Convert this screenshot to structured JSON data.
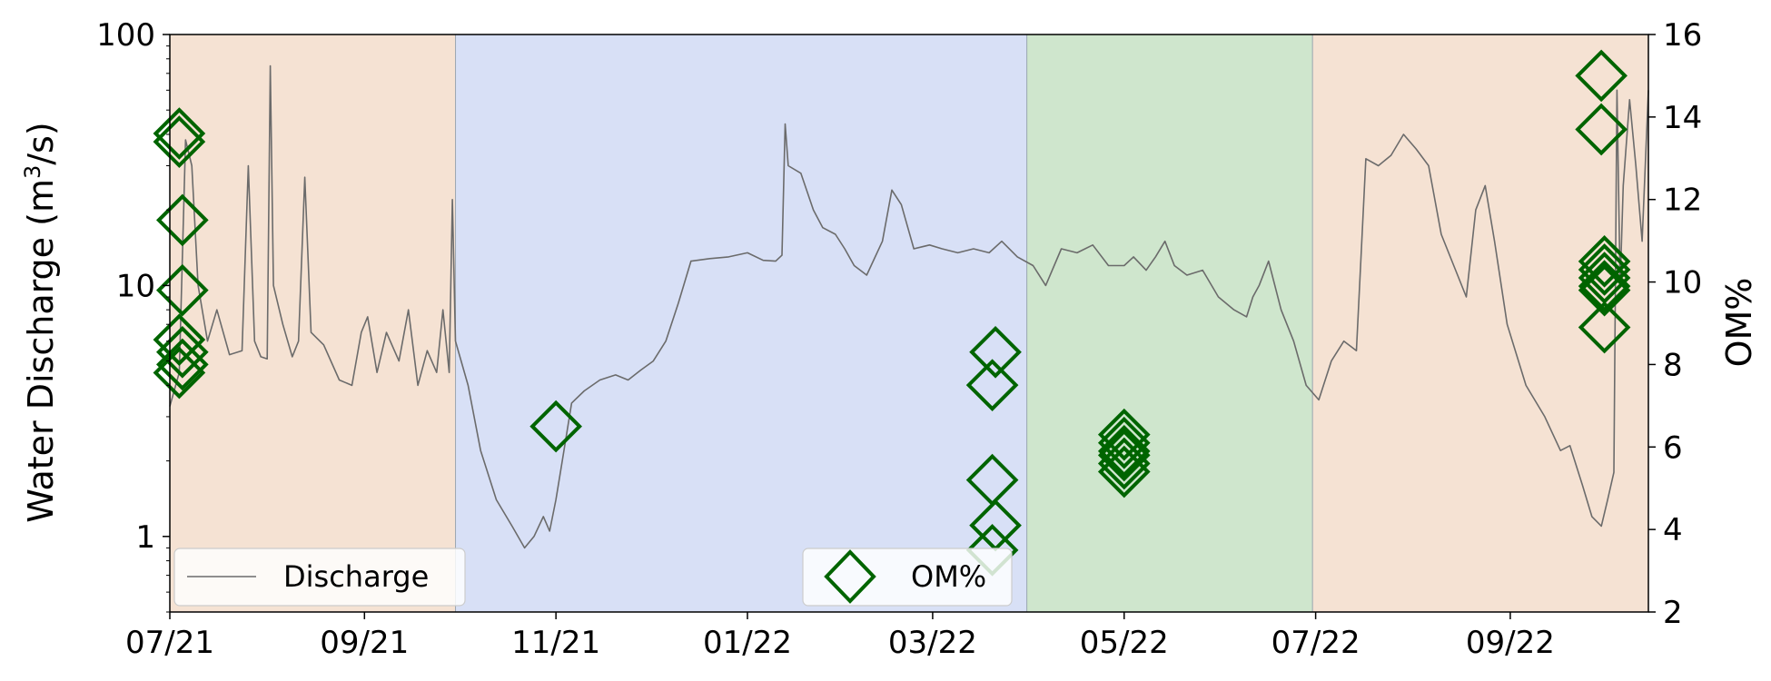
{
  "chart_data": {
    "type": "line",
    "xlabel": "",
    "ylabel": "Water Discharge (m",
    "ylabel_sup": "3",
    "ylabel_tail": "/s)",
    "y2label": "OM%",
    "x_range": [
      "2021-07-01",
      "2022-10-15"
    ],
    "x_ticks": [
      {
        "date": "2021-07-01",
        "label": "07/21"
      },
      {
        "date": "2021-09-01",
        "label": "09/21"
      },
      {
        "date": "2021-11-01",
        "label": "11/21"
      },
      {
        "date": "2022-01-01",
        "label": "01/22"
      },
      {
        "date": "2022-03-01",
        "label": "03/22"
      },
      {
        "date": "2022-05-01",
        "label": "05/22"
      },
      {
        "date": "2022-07-01",
        "label": "07/22"
      },
      {
        "date": "2022-09-01",
        "label": "09/22"
      }
    ],
    "y_scale": "log",
    "ylim": [
      0.5,
      100
    ],
    "y_ticks": [
      {
        "value": 1,
        "label": "1"
      },
      {
        "value": 10,
        "label": "10"
      },
      {
        "value": 100,
        "label": "100"
      }
    ],
    "y2lim": [
      2,
      16
    ],
    "y2_ticks": [
      {
        "value": 2,
        "label": "2"
      },
      {
        "value": 4,
        "label": "4"
      },
      {
        "value": 6,
        "label": "6"
      },
      {
        "value": 8,
        "label": "8"
      },
      {
        "value": 10,
        "label": "10"
      },
      {
        "value": 12,
        "label": "12"
      },
      {
        "value": 14,
        "label": "14"
      },
      {
        "value": 16,
        "label": "16"
      }
    ],
    "season_bands": [
      {
        "start": "2021-07-01",
        "end": "2021-09-30",
        "color": "#f5e2d3"
      },
      {
        "start": "2021-09-30",
        "end": "2022-03-31",
        "color": "#d8e0f6"
      },
      {
        "start": "2022-03-31",
        "end": "2022-06-30",
        "color": "#cfe6cd"
      },
      {
        "start": "2022-06-30",
        "end": "2022-10-15",
        "color": "#f5e2d3"
      }
    ],
    "series": [
      {
        "name": "Discharge",
        "axis": "left",
        "color": "#6b6b6b",
        "points": [
          [
            "2021-07-01",
            3.3
          ],
          [
            "2021-07-04",
            4.5
          ],
          [
            "2021-07-06",
            38
          ],
          [
            "2021-07-08",
            30
          ],
          [
            "2021-07-10",
            10
          ],
          [
            "2021-07-13",
            6
          ],
          [
            "2021-07-16",
            8
          ],
          [
            "2021-07-20",
            5.3
          ],
          [
            "2021-07-24",
            5.5
          ],
          [
            "2021-07-26",
            30
          ],
          [
            "2021-07-28",
            6
          ],
          [
            "2021-07-30",
            5.2
          ],
          [
            "2021-08-01",
            5.1
          ],
          [
            "2021-08-02",
            75
          ],
          [
            "2021-08-03",
            10
          ],
          [
            "2021-08-06",
            7
          ],
          [
            "2021-08-09",
            5.2
          ],
          [
            "2021-08-11",
            6
          ],
          [
            "2021-08-13",
            27
          ],
          [
            "2021-08-15",
            6.5
          ],
          [
            "2021-08-19",
            5.8
          ],
          [
            "2021-08-24",
            4.2
          ],
          [
            "2021-08-28",
            4
          ],
          [
            "2021-08-31",
            6.5
          ],
          [
            "2021-09-02",
            7.5
          ],
          [
            "2021-09-05",
            4.5
          ],
          [
            "2021-09-08",
            6.5
          ],
          [
            "2021-09-12",
            5
          ],
          [
            "2021-09-15",
            8
          ],
          [
            "2021-09-18",
            4
          ],
          [
            "2021-09-21",
            5.5
          ],
          [
            "2021-09-24",
            4.5
          ],
          [
            "2021-09-26",
            8
          ],
          [
            "2021-09-28",
            4.5
          ],
          [
            "2021-09-29",
            22
          ],
          [
            "2021-09-30",
            6
          ],
          [
            "2021-10-04",
            4
          ],
          [
            "2021-10-08",
            2.2
          ],
          [
            "2021-10-13",
            1.4
          ],
          [
            "2021-10-18",
            1.1
          ],
          [
            "2021-10-22",
            0.9
          ],
          [
            "2021-10-25",
            1
          ],
          [
            "2021-10-28",
            1.2
          ],
          [
            "2021-10-30",
            1.05
          ],
          [
            "2021-11-01",
            1.4
          ],
          [
            "2021-11-03",
            2
          ],
          [
            "2021-11-06",
            3.4
          ],
          [
            "2021-11-10",
            3.8
          ],
          [
            "2021-11-15",
            4.2
          ],
          [
            "2021-11-20",
            4.4
          ],
          [
            "2021-11-24",
            4.2
          ],
          [
            "2021-11-28",
            4.6
          ],
          [
            "2021-12-02",
            5
          ],
          [
            "2021-12-06",
            6
          ],
          [
            "2021-12-10",
            8.5
          ],
          [
            "2021-12-14",
            12.5
          ],
          [
            "2021-12-20",
            12.8
          ],
          [
            "2021-12-26",
            13
          ],
          [
            "2022-01-01",
            13.5
          ],
          [
            "2022-01-06",
            12.6
          ],
          [
            "2022-01-10",
            12.5
          ],
          [
            "2022-01-12",
            13.2
          ],
          [
            "2022-01-13",
            44
          ],
          [
            "2022-01-14",
            30
          ],
          [
            "2022-01-18",
            28
          ],
          [
            "2022-01-22",
            20
          ],
          [
            "2022-01-25",
            17
          ],
          [
            "2022-01-29",
            16
          ],
          [
            "2022-02-01",
            14
          ],
          [
            "2022-02-04",
            12
          ],
          [
            "2022-02-08",
            11
          ],
          [
            "2022-02-13",
            15
          ],
          [
            "2022-02-16",
            24
          ],
          [
            "2022-02-19",
            21
          ],
          [
            "2022-02-23",
            14
          ],
          [
            "2022-02-28",
            14.5
          ],
          [
            "2022-03-04",
            14
          ],
          [
            "2022-03-09",
            13.5
          ],
          [
            "2022-03-14",
            14
          ],
          [
            "2022-03-19",
            13.5
          ],
          [
            "2022-03-23",
            15
          ],
          [
            "2022-03-28",
            13
          ],
          [
            "2022-04-02",
            12
          ],
          [
            "2022-04-06",
            10
          ],
          [
            "2022-04-11",
            14
          ],
          [
            "2022-04-16",
            13.5
          ],
          [
            "2022-04-21",
            14.5
          ],
          [
            "2022-04-26",
            12
          ],
          [
            "2022-05-01",
            12
          ],
          [
            "2022-05-04",
            13
          ],
          [
            "2022-05-08",
            11.5
          ],
          [
            "2022-05-11",
            13
          ],
          [
            "2022-05-14",
            15
          ],
          [
            "2022-05-17",
            12
          ],
          [
            "2022-05-21",
            11
          ],
          [
            "2022-05-26",
            11.5
          ],
          [
            "2022-05-31",
            9
          ],
          [
            "2022-06-05",
            8
          ],
          [
            "2022-06-09",
            7.5
          ],
          [
            "2022-06-11",
            9
          ],
          [
            "2022-06-13",
            10
          ],
          [
            "2022-06-16",
            12.5
          ],
          [
            "2022-06-20",
            8
          ],
          [
            "2022-06-24",
            6
          ],
          [
            "2022-06-28",
            4
          ],
          [
            "2022-07-02",
            3.5
          ],
          [
            "2022-07-06",
            5
          ],
          [
            "2022-07-10",
            6
          ],
          [
            "2022-07-14",
            5.5
          ],
          [
            "2022-07-17",
            32
          ],
          [
            "2022-07-21",
            30
          ],
          [
            "2022-07-25",
            33
          ],
          [
            "2022-07-29",
            40
          ],
          [
            "2022-08-02",
            35
          ],
          [
            "2022-08-06",
            30
          ],
          [
            "2022-08-10",
            16
          ],
          [
            "2022-08-14",
            12
          ],
          [
            "2022-08-18",
            9
          ],
          [
            "2022-08-21",
            20
          ],
          [
            "2022-08-24",
            25
          ],
          [
            "2022-08-27",
            15
          ],
          [
            "2022-08-31",
            7
          ],
          [
            "2022-09-06",
            4
          ],
          [
            "2022-09-12",
            3
          ],
          [
            "2022-09-17",
            2.2
          ],
          [
            "2022-09-20",
            2.3
          ],
          [
            "2022-09-24",
            1.6
          ],
          [
            "2022-09-27",
            1.2
          ],
          [
            "2022-09-30",
            1.1
          ],
          [
            "2022-10-02",
            1.4
          ],
          [
            "2022-10-04",
            1.8
          ],
          [
            "2022-10-05",
            60
          ],
          [
            "2022-10-06",
            10
          ],
          [
            "2022-10-07",
            25
          ],
          [
            "2022-10-09",
            55
          ],
          [
            "2022-10-11",
            30
          ],
          [
            "2022-10-13",
            15
          ],
          [
            "2022-10-15",
            60
          ]
        ]
      },
      {
        "name": "OM%",
        "axis": "right",
        "color": "#006400",
        "marker": "diamond",
        "points": [
          [
            "2021-07-04",
            13.6
          ],
          [
            "2021-07-04",
            13.4
          ],
          [
            "2021-07-05",
            11.5
          ],
          [
            "2021-07-05",
            9.8
          ],
          [
            "2021-07-04",
            8.6
          ],
          [
            "2021-07-05",
            8.3
          ],
          [
            "2021-07-05",
            8
          ],
          [
            "2021-07-04",
            7.8
          ],
          [
            "2021-11-01",
            6.5
          ],
          [
            "2022-03-21",
            8.3
          ],
          [
            "2022-03-20",
            7.5
          ],
          [
            "2022-03-20",
            5.2
          ],
          [
            "2022-03-21",
            4.1
          ],
          [
            "2022-03-20",
            3.5
          ],
          [
            "2022-05-01",
            6.3
          ],
          [
            "2022-05-01",
            6.1
          ],
          [
            "2022-05-01",
            5.9
          ],
          [
            "2022-05-01",
            5.8
          ],
          [
            "2022-05-01",
            5.6
          ],
          [
            "2022-05-01",
            5.4
          ],
          [
            "2022-09-30",
            15
          ],
          [
            "2022-09-30",
            13.7
          ],
          [
            "2022-10-01",
            10.5
          ],
          [
            "2022-10-01",
            10.3
          ],
          [
            "2022-10-01",
            10.1
          ],
          [
            "2022-10-01",
            9.9
          ],
          [
            "2022-10-01",
            9.8
          ],
          [
            "2022-10-01",
            8.9
          ]
        ]
      }
    ],
    "legends": [
      {
        "label": "Discharge",
        "placement": "lower left"
      },
      {
        "label": "OM%",
        "placement": "lower center"
      }
    ]
  }
}
